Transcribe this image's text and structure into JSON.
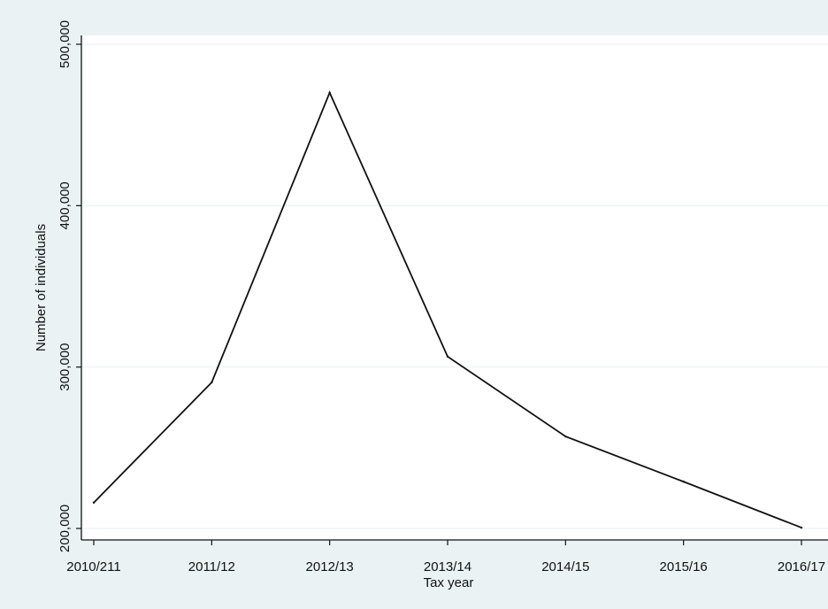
{
  "chart_data": {
    "type": "line",
    "title": "",
    "xlabel": "Tax year",
    "ylabel": "Number of individuals",
    "categories": [
      "2010/211",
      "2011/12",
      "2012/13",
      "2013/14",
      "2014/15",
      "2015/16",
      "2016/17"
    ],
    "series": [
      {
        "values": [
          216000,
          290500,
          470000,
          306500,
          257000,
          229000,
          200500
        ]
      }
    ],
    "ylim": [
      200000,
      500000
    ],
    "yticks": [
      200000,
      300000,
      400000,
      500000
    ],
    "ytick_labels": [
      "200,000",
      "300,000",
      "400,000",
      "500,000"
    ],
    "grid": "horizontal",
    "legend": "none",
    "colors": {
      "background": "#eaf2f3",
      "plot_area": "#ffffff",
      "gridline": "#eaf2f3",
      "line": "#111111"
    }
  }
}
